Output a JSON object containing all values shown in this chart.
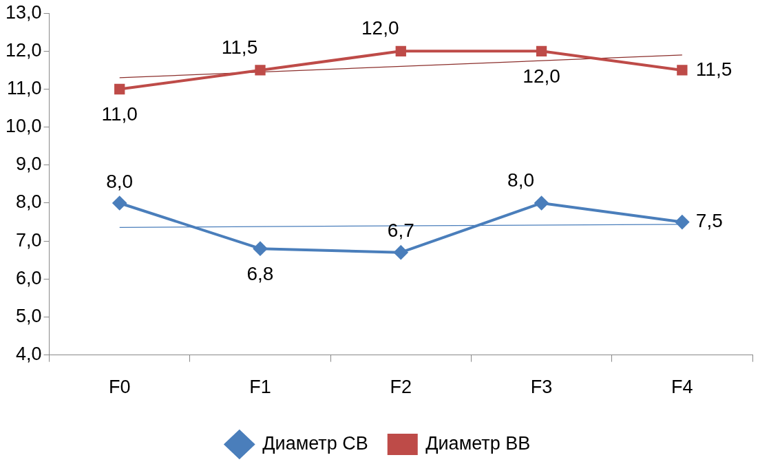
{
  "chart_data": {
    "type": "line",
    "categories": [
      "F0",
      "F1",
      "F2",
      "F3",
      "F4"
    ],
    "series": [
      {
        "name": "Диаметр СВ",
        "color": "#4a7ebb",
        "marker": "diamond",
        "values": [
          8.0,
          6.8,
          6.7,
          8.0,
          7.5
        ],
        "value_labels": [
          "8,0",
          "6,8",
          "6,7",
          "8,0",
          "7,5"
        ]
      },
      {
        "name": "Диаметр ВВ",
        "color": "#be4b48",
        "marker": "square",
        "values": [
          11.0,
          11.5,
          12.0,
          12.0,
          11.5
        ],
        "value_labels": [
          "11,0",
          "11,5",
          "12,0",
          "12,0",
          "11,5"
        ]
      },
      {
        "type": "line",
        "color": "#4a7ebb",
        "marker": "none",
        "x": [
          "F0",
          "F4"
        ],
        "values": [
          7.36,
          7.44
        ]
      },
      {
        "type": "line",
        "color": "#8b2e2b",
        "marker": "none",
        "x": [
          "F0",
          "F4"
        ],
        "values": [
          11.3,
          11.9
        ]
      }
    ],
    "ylim": [
      4,
      13
    ],
    "yticks": [
      {
        "value": 4,
        "label": "4,0"
      },
      {
        "value": 5,
        "label": "5,0"
      },
      {
        "value": 6,
        "label": "6,0"
      },
      {
        "value": 7,
        "label": "7,0"
      },
      {
        "value": 8,
        "label": "8,0"
      },
      {
        "value": 9,
        "label": "9,0"
      },
      {
        "value": 10,
        "label": "10,0"
      },
      {
        "value": 11,
        "label": "11,0"
      },
      {
        "value": 12,
        "label": "12,0"
      },
      {
        "value": 13,
        "label": "13,0"
      }
    ],
    "grid": false,
    "legend": "bottom",
    "line_style": "solid"
  }
}
